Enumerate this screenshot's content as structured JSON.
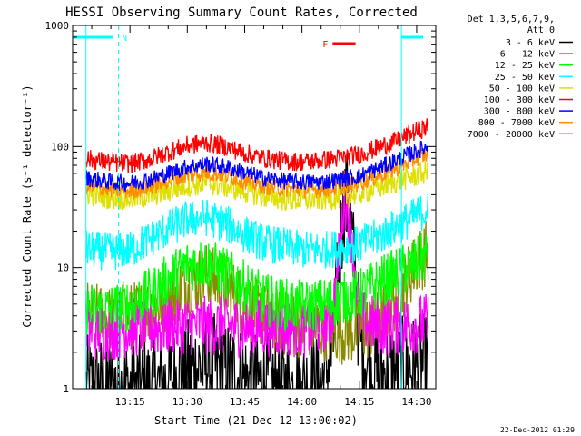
{
  "chart_data": {
    "type": "line",
    "title": "HESSI Observing Summary Count Rates, Corrected",
    "xlabel": "Start Time (21-Dec-12 13:00:02)",
    "ylabel": "Corrected Count Rate (s⁻¹ detector⁻¹)",
    "yscale": "log",
    "ylim": [
      1,
      1000
    ],
    "xlim_minutes": [
      0,
      95
    ],
    "x_ticks": [
      {
        "label": "13:15",
        "minutes": 15
      },
      {
        "label": "13:30",
        "minutes": 30
      },
      {
        "label": "13:45",
        "minutes": 45
      },
      {
        "label": "14:00",
        "minutes": 60
      },
      {
        "label": "14:15",
        "minutes": 75
      },
      {
        "label": "14:30",
        "minutes": 90
      }
    ],
    "y_ticks": [
      {
        "label": "1",
        "value": 1
      },
      {
        "label": "10",
        "value": 10
      },
      {
        "label": "100",
        "value": 100
      },
      {
        "label": "1000",
        "value": 1000
      }
    ],
    "legend": {
      "placement": "right",
      "header": [
        "Det 1,3,5,6,7,9,",
        "Att 0"
      ],
      "items": [
        {
          "label": "3 - 6 keV",
          "color": "#000000"
        },
        {
          "label": "6 - 12 keV",
          "color": "#ff00ff"
        },
        {
          "label": "12 - 25 keV",
          "color": "#00ff00"
        },
        {
          "label": "25 - 50 keV",
          "color": "#00ffff"
        },
        {
          "label": "50 - 100 keV",
          "color": "#e0e000"
        },
        {
          "label": "100 - 300 keV",
          "color": "#ff0000"
        },
        {
          "label": "300 - 800 keV",
          "color": "#0000ff"
        },
        {
          "label": "800 - 7000 keV",
          "color": "#ff8c00"
        },
        {
          "label": "7000 - 20000 keV",
          "color": "#8b8b00"
        }
      ]
    },
    "annotations": [
      {
        "text": "N",
        "color": "#00ffff"
      },
      {
        "text": "F",
        "color": "#ff0000"
      }
    ],
    "night_markers_minutes": [
      3.5,
      12,
      86,
      97
    ],
    "flare_bar_minutes": [
      68,
      74
    ],
    "series": [
      {
        "color": "#ff0000",
        "noise": 0.08,
        "x": [
          0,
          5,
          10,
          15,
          20,
          25,
          30,
          35,
          40,
          45,
          50,
          55,
          60,
          65,
          70,
          75,
          80,
          85,
          90,
          93
        ],
        "values": [
          85,
          78,
          74,
          72,
          78,
          90,
          102,
          108,
          100,
          88,
          80,
          76,
          75,
          77,
          80,
          86,
          98,
          112,
          135,
          145
        ]
      },
      {
        "color": "#0000ff",
        "noise": 0.07,
        "x": [
          0,
          5,
          10,
          15,
          20,
          25,
          30,
          35,
          40,
          45,
          50,
          55,
          60,
          65,
          70,
          75,
          80,
          85,
          90,
          93
        ],
        "values": [
          58,
          54,
          51,
          50,
          53,
          60,
          68,
          72,
          68,
          61,
          55,
          52,
          51,
          51,
          53,
          57,
          66,
          78,
          92,
          100
        ]
      },
      {
        "color": "#ff8c00",
        "noise": 0.07,
        "x": [
          0,
          5,
          10,
          15,
          20,
          25,
          30,
          35,
          40,
          45,
          50,
          55,
          60,
          65,
          70,
          75,
          80,
          85,
          90,
          93
        ],
        "values": [
          50,
          46,
          44,
          43,
          46,
          52,
          58,
          61,
          58,
          52,
          47,
          45,
          44,
          44,
          46,
          50,
          57,
          67,
          80,
          87
        ]
      },
      {
        "color": "#e0e000",
        "noise": 0.1,
        "x": [
          0,
          5,
          10,
          15,
          20,
          25,
          30,
          35,
          40,
          45,
          50,
          55,
          60,
          65,
          70,
          75,
          80,
          85,
          90,
          93
        ],
        "values": [
          43,
          40,
          38,
          37,
          39,
          43,
          48,
          50,
          47,
          43,
          39,
          37,
          36,
          37,
          38,
          41,
          46,
          52,
          58,
          62
        ]
      },
      {
        "color": "#00ffff",
        "noise": 0.16,
        "x": [
          0,
          5,
          10,
          15,
          20,
          25,
          30,
          35,
          40,
          45,
          50,
          55,
          60,
          65,
          70,
          75,
          80,
          85,
          90,
          93
        ],
        "values": [
          15,
          14,
          13.5,
          14,
          17,
          21,
          25,
          26,
          23,
          19,
          16,
          15,
          14,
          14,
          14.5,
          15.5,
          18,
          22,
          27,
          31
        ]
      },
      {
        "color": "#00ff00",
        "noise": 0.22,
        "x": [
          0,
          5,
          10,
          15,
          20,
          25,
          30,
          35,
          40,
          45,
          50,
          55,
          60,
          65,
          70,
          75,
          80,
          85,
          90,
          93
        ],
        "values": [
          4.5,
          4.5,
          4.5,
          5,
          6,
          8,
          10.5,
          11,
          9,
          7,
          5.5,
          5,
          4.8,
          5,
          5.5,
          6,
          7.5,
          9,
          11,
          13
        ]
      },
      {
        "color": "#ff00ff",
        "noise": 0.25,
        "x": [
          0,
          5,
          10,
          15,
          20,
          25,
          30,
          35,
          40,
          45,
          50,
          55,
          60,
          65,
          68,
          70,
          71,
          72,
          73,
          75,
          77,
          80,
          85,
          90,
          93
        ],
        "values": [
          3,
          3,
          3,
          3.2,
          3.2,
          3.3,
          3.3,
          3.3,
          3.3,
          3.2,
          3.2,
          3.2,
          3.2,
          3.3,
          4,
          15,
          38,
          32,
          18,
          4,
          3.5,
          3.3,
          3.3,
          3.4,
          3.5
        ]
      },
      {
        "color": "#8b8b00",
        "noise": 0.28,
        "x": [
          0,
          5,
          10,
          15,
          20,
          25,
          30,
          35,
          40,
          45,
          50,
          55,
          60,
          65,
          70,
          75,
          80,
          85,
          90,
          93
        ],
        "values": [
          4.5,
          4,
          3.8,
          4,
          4.5,
          5.5,
          7.5,
          8.5,
          7,
          5,
          4,
          3.5,
          3.3,
          3.2,
          3,
          3,
          3.5,
          6,
          11,
          14
        ]
      },
      {
        "color": "#000000",
        "noise": 0.45,
        "x": [
          0,
          5,
          10,
          15,
          20,
          25,
          30,
          35,
          40,
          45,
          50,
          55,
          60,
          65,
          68,
          70,
          71,
          72,
          73,
          75,
          77,
          80,
          85,
          90,
          93
        ],
        "values": [
          1,
          1,
          1,
          1,
          1,
          1.1,
          1.4,
          1.6,
          1.4,
          1.2,
          1.1,
          1,
          1,
          1.1,
          2,
          15,
          40,
          34,
          18,
          3,
          1.6,
          1.3,
          1.4,
          1.5,
          1.5
        ]
      }
    ]
  },
  "footer": {
    "date_stamp": "22-Dec-2012 01:29"
  }
}
